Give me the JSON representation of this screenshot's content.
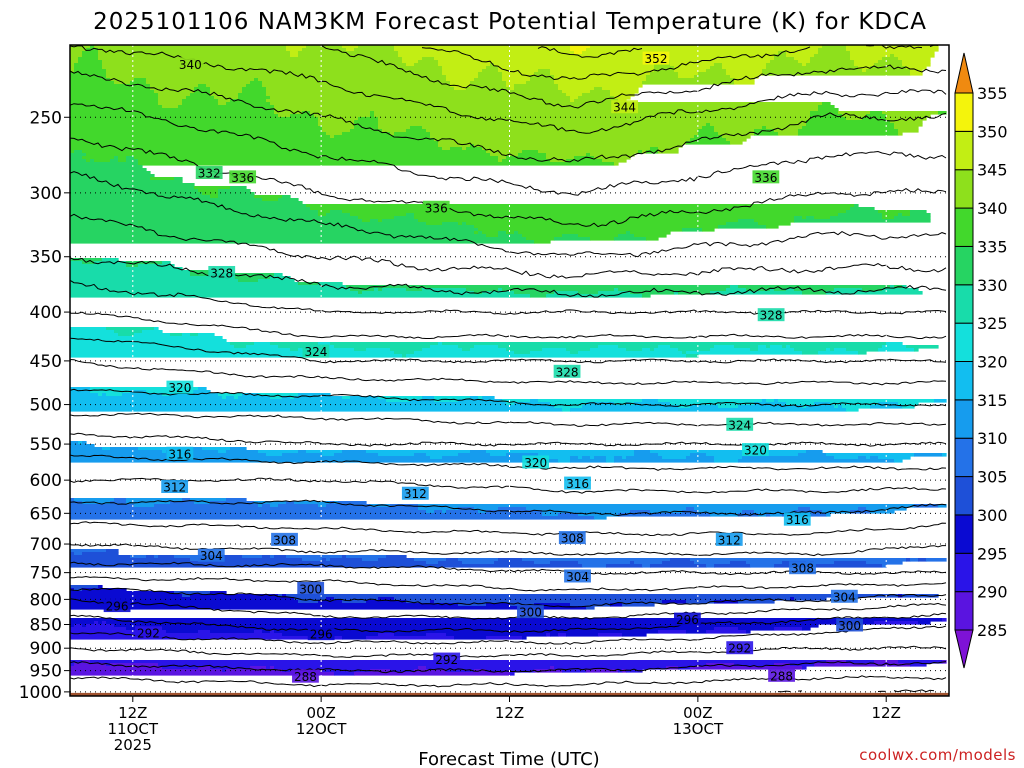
{
  "chart_data": {
    "type": "heatmap",
    "title": "2025101106 NAM3KM Forecast Potential Temperature (K) for KDCA",
    "xlabel": "Forecast Time (UTC)",
    "credit": "coolwx.com/models",
    "y_axis": {
      "type": "log-pressure",
      "inverted": true,
      "range": [
        1010,
        210
      ],
      "ticks": [
        250,
        300,
        350,
        400,
        450,
        500,
        550,
        600,
        650,
        700,
        750,
        800,
        850,
        900,
        950,
        1000
      ]
    },
    "x_axis": {
      "range_hours": [
        6,
        90
      ],
      "ticks": [
        {
          "hour": 12,
          "lines": [
            "12Z",
            "11OCT",
            "2025"
          ]
        },
        {
          "hour": 30,
          "lines": [
            "00Z",
            "12OCT"
          ]
        },
        {
          "hour": 48,
          "lines": [
            "12Z"
          ]
        },
        {
          "hour": 66,
          "lines": [
            "00Z",
            "13OCT"
          ]
        },
        {
          "hour": 84,
          "lines": [
            "12Z"
          ]
        }
      ]
    },
    "grid": true,
    "colorbar": {
      "levels": [
        285,
        290,
        295,
        300,
        305,
        310,
        315,
        320,
        325,
        330,
        335,
        340,
        345,
        350,
        355
      ],
      "colors": [
        "#7e12d6",
        "#5a14e0",
        "#2a14e8",
        "#0a0ad2",
        "#1e50d8",
        "#2472e8",
        "#169cee",
        "#12bef0",
        "#14e0dc",
        "#18dcaa",
        "#26d462",
        "#42d82c",
        "#8ee01c",
        "#c2ee14",
        "#f4f40c",
        "#f8c80e",
        "#f08a10"
      ]
    },
    "theta_profiles": [
      {
        "hour": 6,
        "points": [
          [
            1000,
            286
          ],
          [
            950,
            289
          ],
          [
            900,
            292
          ],
          [
            850,
            295
          ],
          [
            800,
            298
          ],
          [
            750,
            303
          ],
          [
            700,
            306
          ],
          [
            650,
            309
          ],
          [
            600,
            312
          ],
          [
            550,
            315
          ],
          [
            500,
            319
          ],
          [
            450,
            322
          ],
          [
            400,
            326
          ],
          [
            350,
            330
          ],
          [
            300,
            333
          ],
          [
            250,
            337
          ],
          [
            210,
            342
          ]
        ]
      },
      {
        "hour": 30,
        "points": [
          [
            1000,
            287
          ],
          [
            950,
            290
          ],
          [
            900,
            293
          ],
          [
            850,
            297
          ],
          [
            800,
            300
          ],
          [
            750,
            303
          ],
          [
            700,
            307
          ],
          [
            650,
            309
          ],
          [
            600,
            312
          ],
          [
            550,
            316
          ],
          [
            500,
            319
          ],
          [
            450,
            324
          ],
          [
            400,
            328
          ],
          [
            350,
            332
          ],
          [
            300,
            336
          ],
          [
            250,
            340
          ],
          [
            210,
            344
          ]
        ]
      },
      {
        "hour": 54,
        "points": [
          [
            1000,
            287
          ],
          [
            950,
            290
          ],
          [
            900,
            293
          ],
          [
            850,
            297
          ],
          [
            800,
            301
          ],
          [
            750,
            304
          ],
          [
            700,
            307
          ],
          [
            650,
            310
          ],
          [
            600,
            313
          ],
          [
            550,
            316
          ],
          [
            500,
            320
          ],
          [
            450,
            324
          ],
          [
            400,
            328
          ],
          [
            350,
            334
          ],
          [
            300,
            338
          ],
          [
            250,
            343
          ],
          [
            210,
            349
          ]
        ]
      },
      {
        "hour": 78,
        "points": [
          [
            1000,
            286
          ],
          [
            950,
            289
          ],
          [
            900,
            292
          ],
          [
            850,
            295
          ],
          [
            800,
            300
          ],
          [
            750,
            304
          ],
          [
            700,
            307
          ],
          [
            650,
            310
          ],
          [
            600,
            313
          ],
          [
            550,
            316
          ],
          [
            500,
            320
          ],
          [
            450,
            324
          ],
          [
            400,
            328
          ],
          [
            350,
            333
          ],
          [
            300,
            336
          ],
          [
            250,
            340
          ],
          [
            210,
            346
          ]
        ]
      },
      {
        "hour": 90,
        "points": [
          [
            1000,
            286
          ],
          [
            950,
            289
          ],
          [
            900,
            292
          ],
          [
            850,
            294
          ],
          [
            800,
            299
          ],
          [
            750,
            304
          ],
          [
            700,
            306
          ],
          [
            650,
            309
          ],
          [
            600,
            313
          ],
          [
            550,
            316
          ],
          [
            500,
            320
          ],
          [
            450,
            324
          ],
          [
            400,
            328
          ],
          [
            350,
            333
          ],
          [
            300,
            336
          ],
          [
            250,
            340
          ],
          [
            210,
            346
          ]
        ]
      }
    ],
    "contour_labels": [
      {
        "value": "340",
        "hour": 17.5,
        "p": 220
      },
      {
        "value": "352",
        "hour": 62,
        "p": 217
      },
      {
        "value": "344",
        "hour": 59,
        "p": 244
      },
      {
        "value": "332",
        "hour": 19.3,
        "p": 286
      },
      {
        "value": "336",
        "hour": 22.5,
        "p": 289
      },
      {
        "value": "336",
        "hour": 41,
        "p": 311
      },
      {
        "value": "336",
        "hour": 72.5,
        "p": 289
      },
      {
        "value": "328",
        "hour": 20.5,
        "p": 364
      },
      {
        "value": "328",
        "hour": 73,
        "p": 403
      },
      {
        "value": "324",
        "hour": 29.5,
        "p": 440
      },
      {
        "value": "328",
        "hour": 53.5,
        "p": 462
      },
      {
        "value": "320",
        "hour": 16.5,
        "p": 480
      },
      {
        "value": "324",
        "hour": 70,
        "p": 525
      },
      {
        "value": "316",
        "hour": 16.5,
        "p": 563
      },
      {
        "value": "320",
        "hour": 50.5,
        "p": 575
      },
      {
        "value": "320",
        "hour": 71.5,
        "p": 558
      },
      {
        "value": "316",
        "hour": 54.5,
        "p": 605
      },
      {
        "value": "312",
        "hour": 16,
        "p": 610
      },
      {
        "value": "312",
        "hour": 39,
        "p": 620
      },
      {
        "value": "316",
        "hour": 75.5,
        "p": 660
      },
      {
        "value": "312",
        "hour": 69,
        "p": 693
      },
      {
        "value": "308",
        "hour": 26.5,
        "p": 693
      },
      {
        "value": "308",
        "hour": 54,
        "p": 690
      },
      {
        "value": "304",
        "hour": 19.5,
        "p": 720
      },
      {
        "value": "308",
        "hour": 76,
        "p": 742
      },
      {
        "value": "304",
        "hour": 54.5,
        "p": 757
      },
      {
        "value": "300",
        "hour": 29,
        "p": 780
      },
      {
        "value": "304",
        "hour": 80,
        "p": 795
      },
      {
        "value": "296",
        "hour": 10.5,
        "p": 813
      },
      {
        "value": "300",
        "hour": 50,
        "p": 825
      },
      {
        "value": "296",
        "hour": 65,
        "p": 840
      },
      {
        "value": "300",
        "hour": 80.5,
        "p": 852
      },
      {
        "value": "292",
        "hour": 13.5,
        "p": 868
      },
      {
        "value": "296",
        "hour": 30,
        "p": 870
      },
      {
        "value": "292",
        "hour": 70,
        "p": 900
      },
      {
        "value": "292",
        "hour": 42,
        "p": 925
      },
      {
        "value": "288",
        "hour": 28.5,
        "p": 964
      },
      {
        "value": "288",
        "hour": 74,
        "p": 962
      }
    ]
  }
}
